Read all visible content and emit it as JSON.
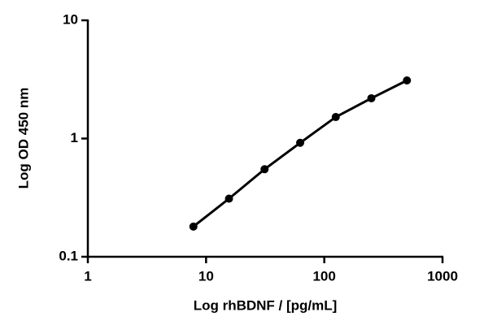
{
  "chart_data": {
    "type": "line",
    "x_label": "Log rhBDNF / [pg/mL]",
    "y_label": "Log OD 450 nm",
    "x": [
      7.8125,
      15.625,
      31.25,
      62.5,
      125,
      250,
      500
    ],
    "values": [
      0.18,
      0.31,
      0.55,
      0.92,
      1.52,
      2.19,
      3.1
    ],
    "color": "#000000",
    "xscale": "log",
    "yscale": "log",
    "xlim": [
      1,
      1000
    ],
    "xticks": [
      1,
      10,
      100,
      1000
    ],
    "ylim": [
      0.1,
      10
    ],
    "yticks": [
      0.1,
      1,
      10
    ],
    "grid": false
  }
}
